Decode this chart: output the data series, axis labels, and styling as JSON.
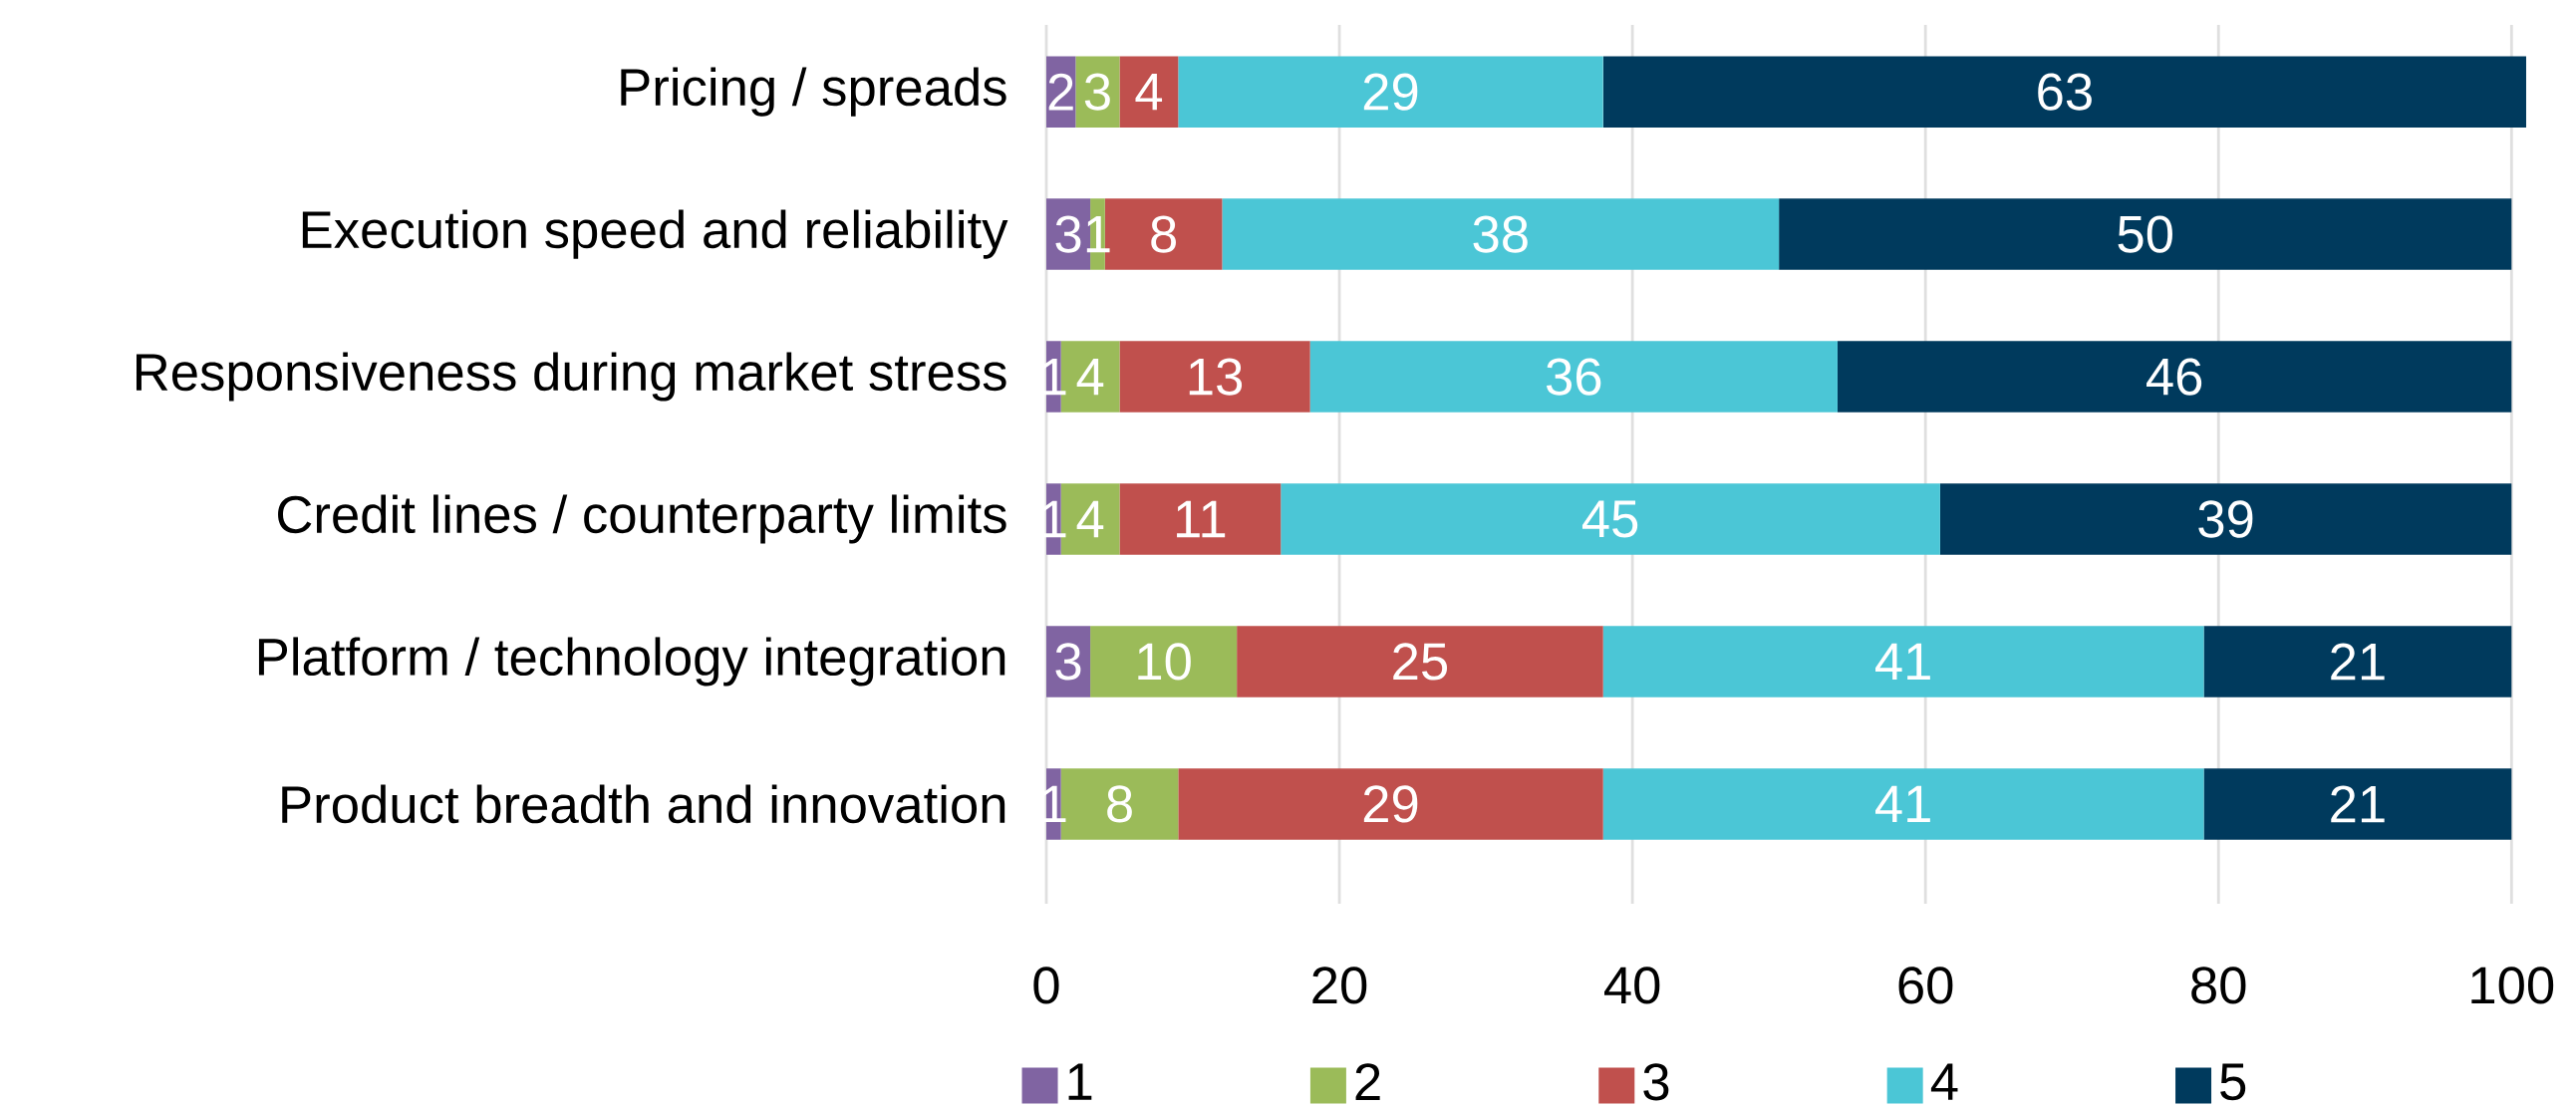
{
  "chart_data": {
    "type": "bar",
    "orientation": "horizontal",
    "stacked": true,
    "data_labels": true,
    "grid": "x",
    "legend": "bottom",
    "categories": [
      "Pricing / spreads",
      "Execution speed and reliability",
      "Responsiveness during market stress",
      "Credit lines / counterparty limits",
      "Platform / technology integration",
      "Product breadth and innovation"
    ],
    "series": [
      {
        "name": "1",
        "color": "#8064a2",
        "values": [
          2,
          3,
          1,
          1,
          3,
          1
        ]
      },
      {
        "name": "2",
        "color": "#9bbb59",
        "values": [
          3,
          1,
          4,
          4,
          10,
          8
        ]
      },
      {
        "name": "3",
        "color": "#c0504d",
        "values": [
          4,
          8,
          13,
          11,
          25,
          29
        ]
      },
      {
        "name": "4",
        "color": "#4bc6d6",
        "values": [
          29,
          38,
          36,
          45,
          41,
          41
        ]
      },
      {
        "name": "5",
        "color": "#003a5d",
        "values": [
          63,
          50,
          46,
          39,
          21,
          21
        ]
      }
    ],
    "xlim": [
      0,
      101
    ],
    "xticks": [
      0,
      20,
      40,
      60,
      80,
      100
    ]
  }
}
